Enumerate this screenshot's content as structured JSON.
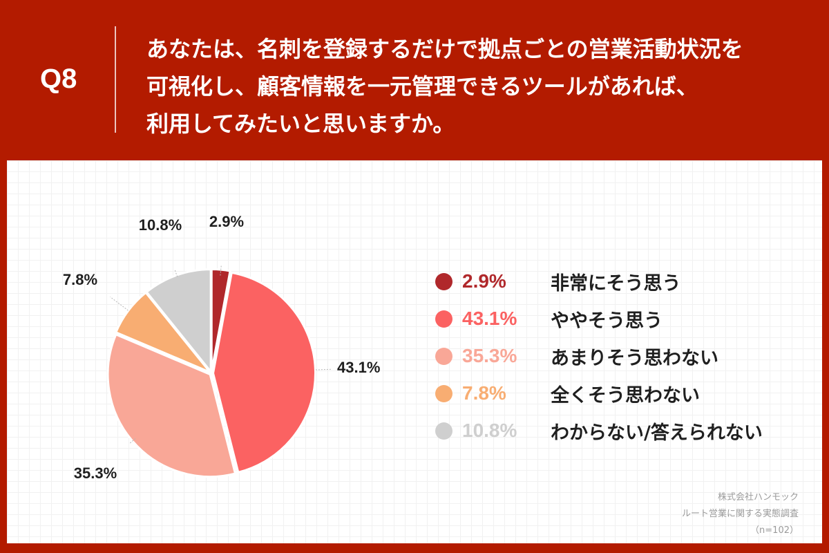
{
  "header": {
    "question_number": "Q8",
    "question_lines": [
      "あなたは、名刺を登録するだけで拠点ごとの営業活動状況を",
      "可視化し、顧客情報を一元管理できるツールがあれば、",
      "利用してみたいと思いますか。"
    ]
  },
  "chart_data": {
    "type": "pie",
    "title": "",
    "slices": [
      {
        "label": "非常にそう思う",
        "value": 2.9,
        "display": "2.9%",
        "color": "#b0282b"
      },
      {
        "label": "ややそう思う",
        "value": 43.1,
        "display": "43.1%",
        "color": "#fb6262"
      },
      {
        "label": "あまりそう思わない",
        "value": 35.3,
        "display": "35.3%",
        "color": "#f9a797"
      },
      {
        "label": "全くそう思わない",
        "value": 7.8,
        "display": "7.8%",
        "color": "#f8ad72"
      },
      {
        "label": "わからない/答えられない",
        "value": 10.8,
        "display": "10.8%",
        "color": "#cfcfcf"
      }
    ],
    "legend_position": "right",
    "start": "top, clockwise"
  },
  "source": {
    "company": "株式会社ハンモック",
    "survey": "ルート営業に関する実態調査",
    "sample": "（n=102）"
  },
  "colors": {
    "header_background": "#b31b00",
    "panel_background": "#ffffff"
  }
}
